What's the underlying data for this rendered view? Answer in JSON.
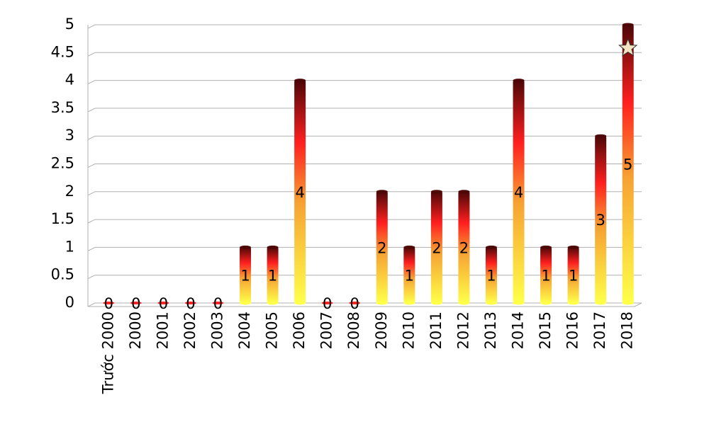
{
  "chart_data": {
    "type": "bar",
    "categories": [
      "Trước 2000",
      "2000",
      "2001",
      "2002",
      "2003",
      "2004",
      "2005",
      "2006",
      "2007",
      "2008",
      "2009",
      "2010",
      "2011",
      "2012",
      "2013",
      "2014",
      "2015",
      "2016",
      "2017",
      "2018"
    ],
    "values": [
      0,
      0,
      0,
      0,
      0,
      1,
      1,
      4,
      0,
      0,
      2,
      1,
      2,
      2,
      1,
      4,
      1,
      1,
      3,
      5
    ],
    "colors": [
      "#ffff4a",
      "#f6a233",
      "#ff1f1f",
      "#4e0707"
    ],
    "ylim": [
      0,
      5
    ],
    "yticks": [
      0,
      0.5,
      1,
      1.5,
      2,
      2.5,
      3,
      3.5,
      4,
      4.5,
      5
    ],
    "grid": true
  }
}
